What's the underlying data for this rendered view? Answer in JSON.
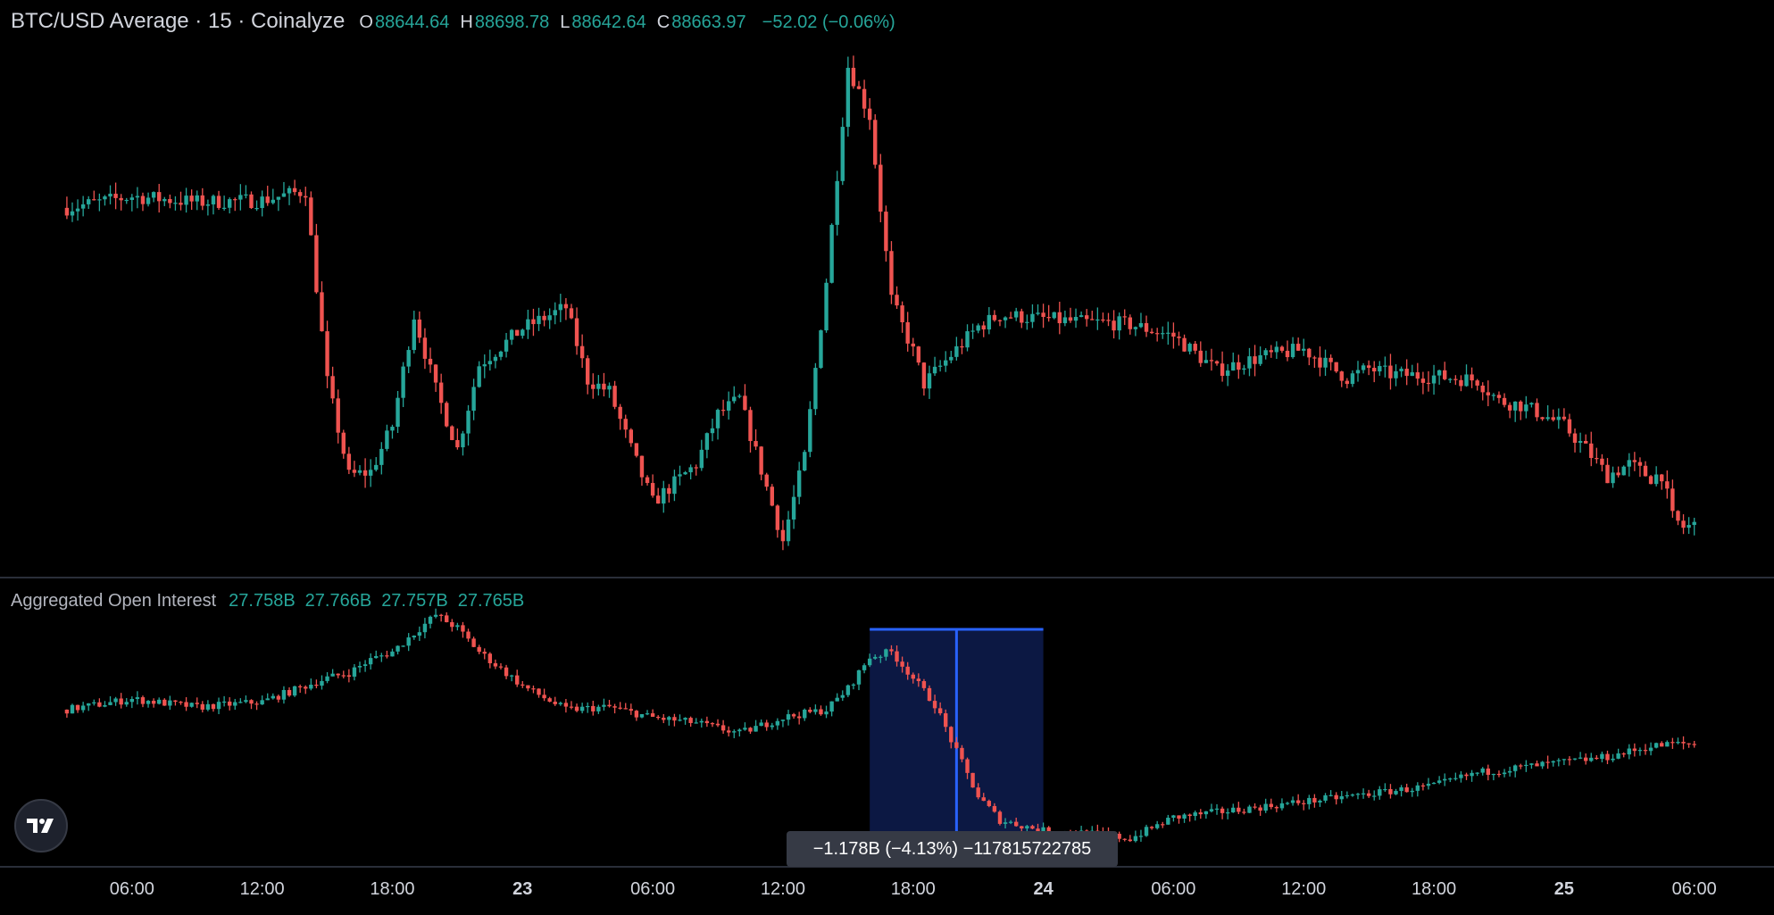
{
  "colors": {
    "up": "#26a69a",
    "down": "#ef5350",
    "background": "#000000",
    "grid_divider": "#2a2e39",
    "measure_line": "#2962ff",
    "measure_fill": "#0d1b4a",
    "text": "#d1d4dc"
  },
  "header": {
    "title": "BTC/USD Average · 15 · Coinalyze",
    "o_key": "O",
    "o_val": "88644.64",
    "h_key": "H",
    "h_val": "88698.78",
    "l_key": "L",
    "l_val": "88642.64",
    "c_key": "C",
    "c_val": "88663.97",
    "change": "−52.02 (−0.06%)"
  },
  "oi_header": {
    "title": "Aggregated Open Interest",
    "v1": "27.758B",
    "v2": "27.766B",
    "v3": "27.757B",
    "v4": "27.765B"
  },
  "measure": {
    "label": "−1.178B (−4.13%) −117815722785",
    "from_time": "Day22 16:00",
    "to_time": "Day24 00:00"
  },
  "logo_icon": "tradingview-logo-icon",
  "chart_data": [
    {
      "type": "line",
      "name": "BTC/USD Average · 15 · Coinalyze",
      "style": "candlestick",
      "xlabel": "",
      "ylabel": "",
      "x_ticks": [
        "06:00",
        "12:00",
        "18:00",
        "23",
        "06:00",
        "12:00",
        "18:00",
        "24",
        "06:00",
        "12:00",
        "18:00",
        "25",
        "06:00"
      ],
      "x_hours": [
        6,
        12,
        18,
        24,
        30,
        36,
        42,
        48,
        54,
        60,
        66,
        72,
        78
      ],
      "x": [
        3,
        6,
        9,
        12,
        14,
        15,
        16,
        17,
        18,
        19,
        20,
        21,
        22,
        24,
        26,
        27,
        28,
        29,
        30,
        32,
        33,
        34,
        36,
        37,
        38,
        39,
        40,
        41,
        42,
        42.5,
        43,
        44,
        45,
        46,
        48,
        50,
        51,
        52,
        54,
        56,
        58,
        60,
        62,
        63,
        64,
        66,
        68,
        69,
        70,
        71,
        72,
        73,
        74,
        75,
        76,
        76.5,
        77,
        77.5,
        78
      ],
      "y": [
        88900,
        88960,
        88930,
        88940,
        88990,
        87990,
        87500,
        87520,
        87760,
        88340,
        87950,
        87640,
        88080,
        88270,
        88380,
        88000,
        87940,
        87640,
        87360,
        87560,
        87820,
        87900,
        87160,
        87600,
        88520,
        89640,
        89380,
        88420,
        88150,
        87980,
        88040,
        88160,
        88280,
        88340,
        88320,
        88300,
        88300,
        88290,
        88230,
        88050,
        88120,
        88160,
        88010,
        88060,
        88030,
        88020,
        88000,
        87890,
        87870,
        87820,
        87760,
        87640,
        87500,
        87560,
        87490,
        87510,
        87280,
        87230,
        87240
      ]
    },
    {
      "type": "line",
      "name": "Aggregated Open Interest",
      "style": "candlestick",
      "x_ticks": [
        "06:00",
        "12:00",
        "18:00",
        "23",
        "06:00",
        "12:00",
        "18:00",
        "24",
        "06:00",
        "12:00",
        "18:00",
        "25",
        "06:00"
      ],
      "x": [
        3,
        6,
        9,
        12,
        15,
        16,
        17,
        18,
        19,
        20,
        21,
        22,
        24,
        26,
        28,
        30,
        32,
        34,
        36,
        38,
        39,
        40,
        41,
        42,
        43,
        44,
        45,
        46,
        48,
        50,
        52,
        54,
        56,
        58,
        60,
        62,
        64,
        66,
        68,
        70,
        72,
        74,
        76,
        77,
        78
      ],
      "y": [
        27.76,
        27.8,
        27.77,
        27.79,
        27.88,
        27.9,
        27.95,
        27.98,
        28.05,
        28.12,
        28.07,
        27.98,
        27.85,
        27.76,
        27.77,
        27.73,
        27.71,
        27.67,
        27.73,
        27.76,
        27.84,
        27.96,
        27.98,
        27.88,
        27.78,
        27.6,
        27.43,
        27.34,
        27.3,
        27.29,
        27.27,
        27.35,
        27.37,
        27.39,
        27.41,
        27.43,
        27.45,
        27.47,
        27.52,
        27.54,
        27.56,
        27.58,
        27.62,
        27.63,
        27.63
      ]
    }
  ]
}
